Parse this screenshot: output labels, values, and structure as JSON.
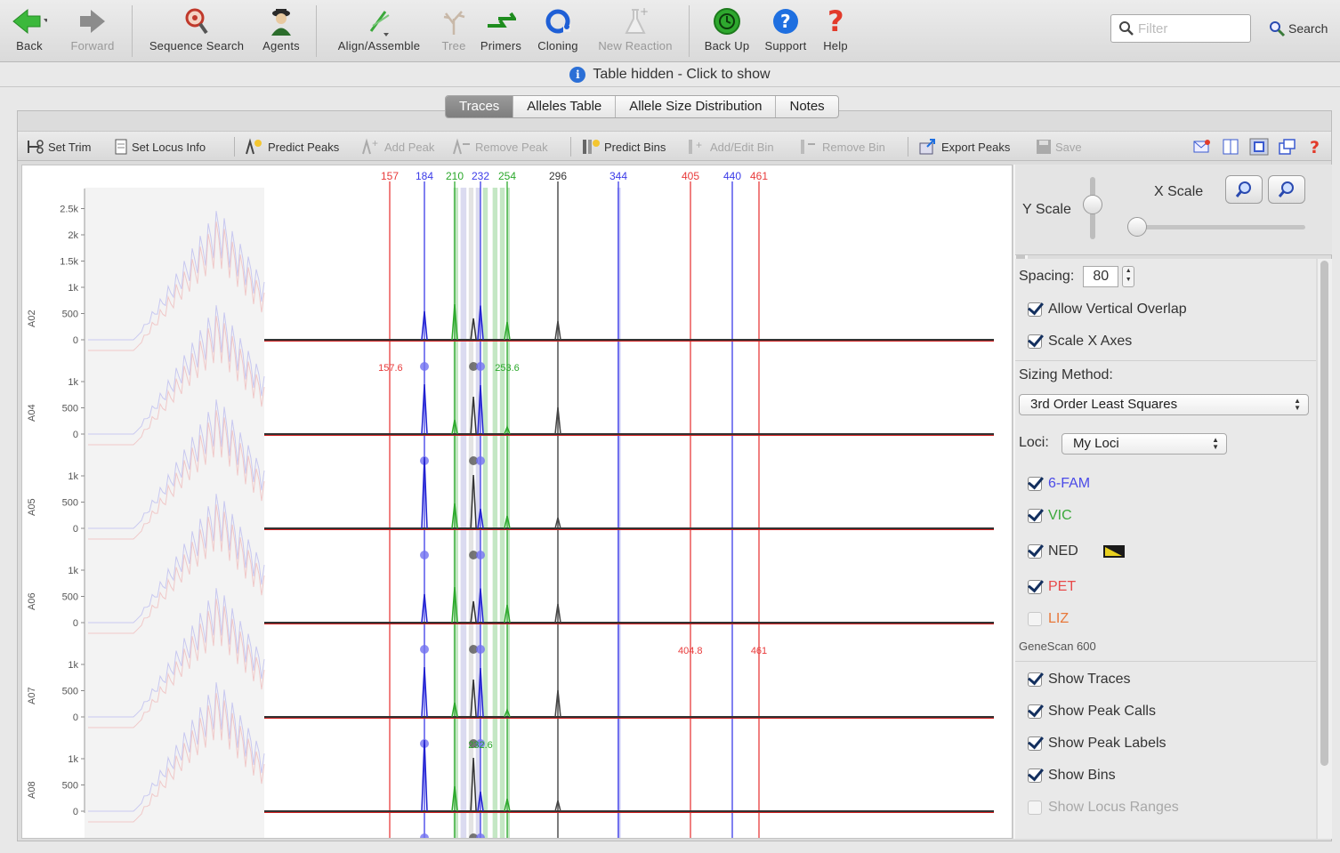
{
  "toolbar": {
    "back_label": "Back",
    "forward_label": "Forward",
    "sequence_search_label": "Sequence Search",
    "agents_label": "Agents",
    "align_label": "Align/Assemble",
    "tree_label": "Tree",
    "primers_label": "Primers",
    "cloning_label": "Cloning",
    "new_reaction_label": "New Reaction",
    "backup_label": "Back Up",
    "support_label": "Support",
    "help_label": "Help",
    "filter_placeholder": "Filter",
    "search_label": "Search"
  },
  "infobar": {
    "text": "Table hidden - Click to show"
  },
  "tabs": [
    {
      "label": "Traces",
      "active": true
    },
    {
      "label": "Alleles Table",
      "active": false
    },
    {
      "label": "Allele Size Distribution",
      "active": false
    },
    {
      "label": "Notes",
      "active": false
    }
  ],
  "doc_toolbar": {
    "set_trim": "Set Trim",
    "set_locus_info": "Set Locus Info",
    "predict_peaks": "Predict Peaks",
    "add_peak": "Add Peak",
    "remove_peak": "Remove Peak",
    "predict_bins": "Predict Bins",
    "add_edit_bin": "Add/Edit Bin",
    "remove_bin": "Remove Bin",
    "export_peaks": "Export Peaks",
    "save": "Save"
  },
  "side": {
    "y_scale": "Y Scale",
    "x_scale": "X Scale",
    "spacing_label": "Spacing:",
    "spacing_value": "80",
    "allow_overlap": "Allow Vertical Overlap",
    "scale_x_axes": "Scale X Axes",
    "sizing_method_label": "Sizing Method:",
    "sizing_method_value": "3rd Order Least Squares",
    "loci_label": "Loci:",
    "loci_value": "My Loci",
    "dyes": [
      {
        "name": "6-FAM",
        "checked": true,
        "color": "#4a4ae8"
      },
      {
        "name": "VIC",
        "checked": true,
        "color": "#3aa83a"
      },
      {
        "name": "NED",
        "checked": true,
        "color": "#333333"
      },
      {
        "name": "PET",
        "checked": true,
        "color": "#e84a4a"
      },
      {
        "name": "LIZ",
        "checked": false,
        "color": "#e8783a"
      }
    ],
    "genescan": "GeneScan 600",
    "show_traces": "Show Traces",
    "show_peak_calls": "Show Peak Calls",
    "show_peak_labels": "Show Peak Labels",
    "show_bins": "Show Bins",
    "show_locus_ranges": "Show Locus Ranges"
  },
  "chart_data": {
    "type": "line",
    "bin_labels": [
      {
        "x": 157,
        "label": "157",
        "color": "#e83a3a"
      },
      {
        "x": 184,
        "label": "184",
        "color": "#3a3ae8"
      },
      {
        "x": 210,
        "label": "210",
        "color": "#2aa82a"
      },
      {
        "x": 232,
        "label": "232",
        "color": "#3a3ae8"
      },
      {
        "x": 254,
        "label": "254",
        "color": "#2aa82a"
      },
      {
        "x": 296,
        "label": "296",
        "color": "#333333"
      },
      {
        "x": 344,
        "label": "344",
        "color": "#3a3ae8"
      },
      {
        "x": 405,
        "label": "405",
        "color": "#e83a3a"
      },
      {
        "x": 440,
        "label": "440",
        "color": "#3a3ae8"
      },
      {
        "x": 461,
        "label": "461",
        "color": "#e83a3a"
      }
    ],
    "samples": [
      {
        "name": "A02",
        "ticks": [
          "2.5k",
          "2k",
          "1.5k",
          "1k",
          "500",
          "0"
        ],
        "peak_labels": [
          {
            "x": 157.6,
            "label": "157.6",
            "color": "#e83a3a"
          },
          {
            "x": 254,
            "label": "253.6",
            "color": "#2aa82a"
          }
        ]
      },
      {
        "name": "A04",
        "ticks": [
          "1k",
          "500",
          "0"
        ],
        "peak_labels": []
      },
      {
        "name": "A05",
        "ticks": [
          "1k",
          "500",
          "0"
        ],
        "peak_labels": []
      },
      {
        "name": "A06",
        "ticks": [
          "1k",
          "500",
          "0"
        ],
        "peak_labels": [
          {
            "x": 404.8,
            "label": "404.8",
            "color": "#e83a3a"
          },
          {
            "x": 461,
            "label": "461",
            "color": "#e83a3a"
          }
        ]
      },
      {
        "name": "A07",
        "ticks": [
          "1k",
          "500",
          "0"
        ],
        "peak_labels": [
          {
            "x": 232,
            "label": "232.6",
            "color": "#2aa82a"
          }
        ]
      },
      {
        "name": "A08",
        "ticks": [
          "1k",
          "500",
          "0"
        ],
        "peak_labels": []
      }
    ]
  }
}
